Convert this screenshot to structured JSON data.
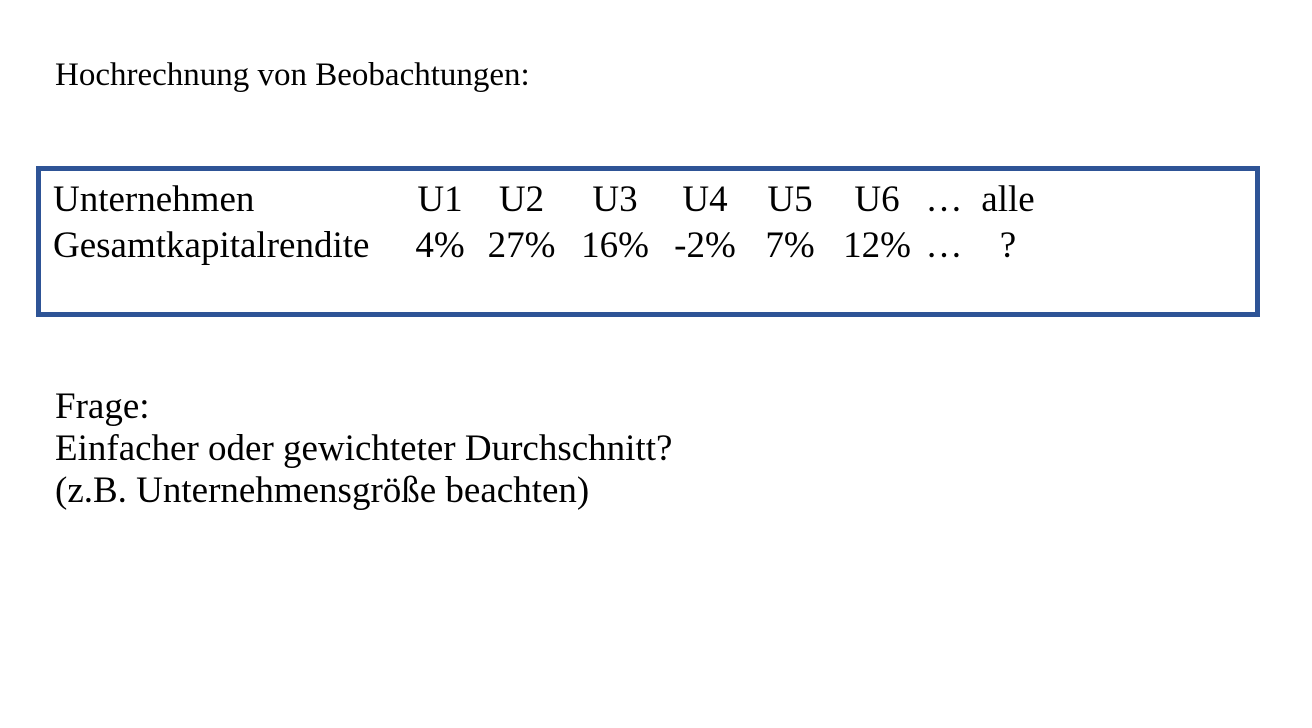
{
  "page": {
    "background": "#FFFFFF",
    "text_color": "#000000"
  },
  "title": "Hochrechnung von Beobachtungen:",
  "observations_box": {
    "border_color": "#2E5496",
    "rows": [
      {
        "cells": [
          "Unternehmen",
          "U1",
          "U2",
          "U3",
          "U4",
          "U5",
          "U6",
          "…",
          "alle"
        ]
      },
      {
        "cells": [
          "Gesamtkapitalrendite",
          "4%",
          "27%",
          "16%",
          "-2%",
          "7%",
          "12%",
          "…",
          "?"
        ]
      }
    ]
  },
  "question": {
    "lines": [
      "Frage:",
      "Einfacher oder gewichteter Durchschnitt?",
      "(z.B. Unternehmensgröße beachten)"
    ]
  }
}
